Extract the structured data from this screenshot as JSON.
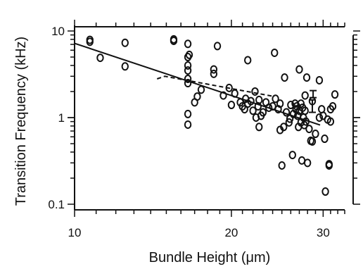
{
  "chart_data": {
    "type": "scatter",
    "title": "",
    "xlabel": "Bundle Height (μm)",
    "ylabel": "Transition Frequency (kHz)",
    "x_scale": "log",
    "y_scale": "log",
    "xlim": [
      10,
      33
    ],
    "ylim": [
      0.1,
      10
    ],
    "x_tick_labels": [
      "10",
      "20",
      "30"
    ],
    "x_tick_values": [
      10,
      20,
      30
    ],
    "y_tick_labels": [
      "0.1",
      "1",
      "10"
    ],
    "y_tick_values": [
      0.1,
      1,
      10
    ],
    "grid": false,
    "legend": "none",
    "marker": "open-circle",
    "colors": {
      "points": "#111111",
      "fit_line": "#111111",
      "dashed_line": "#111111"
    },
    "points": [
      [
        10.7,
        7.9
      ],
      [
        10.7,
        7.5
      ],
      [
        11.2,
        4.9
      ],
      [
        12.5,
        7.3
      ],
      [
        12.5,
        3.9
      ],
      [
        15.5,
        8.0
      ],
      [
        15.5,
        7.7
      ],
      [
        16.5,
        7.1
      ],
      [
        16.5,
        5.0
      ],
      [
        16.6,
        5.3
      ],
      [
        16.5,
        4.0
      ],
      [
        16.5,
        3.5
      ],
      [
        16.5,
        2.8
      ],
      [
        16.5,
        2.5
      ],
      [
        16.5,
        1.1
      ],
      [
        16.5,
        0.83
      ],
      [
        17.0,
        1.5
      ],
      [
        17.2,
        1.75
      ],
      [
        17.5,
        2.1
      ],
      [
        18.5,
        3.6
      ],
      [
        18.5,
        3.2
      ],
      [
        18.8,
        6.7
      ],
      [
        19.3,
        1.8
      ],
      [
        19.8,
        2.2
      ],
      [
        20.0,
        1.4
      ],
      [
        20.3,
        1.9
      ],
      [
        20.8,
        1.5
      ],
      [
        21.0,
        1.35
      ],
      [
        21.2,
        1.25
      ],
      [
        21.3,
        1.65
      ],
      [
        21.5,
        4.6
      ],
      [
        21.5,
        1.45
      ],
      [
        21.8,
        1.55
      ],
      [
        22.0,
        1.2
      ],
      [
        22.2,
        2.0
      ],
      [
        22.3,
        1.0
      ],
      [
        22.5,
        1.35
      ],
      [
        22.6,
        1.6
      ],
      [
        22.6,
        0.78
      ],
      [
        22.8,
        1.05
      ],
      [
        23.0,
        1.15
      ],
      [
        23.3,
        1.5
      ],
      [
        23.6,
        1.3
      ],
      [
        24.0,
        1.35
      ],
      [
        24.2,
        5.6
      ],
      [
        24.3,
        1.65
      ],
      [
        24.6,
        1.25
      ],
      [
        24.8,
        1.45
      ],
      [
        24.8,
        0.72
      ],
      [
        25.0,
        0.28
      ],
      [
        25.2,
        0.78
      ],
      [
        25.3,
        2.9
      ],
      [
        25.5,
        1.15
      ],
      [
        25.8,
        0.88
      ],
      [
        25.9,
        0.97
      ],
      [
        26.0,
        1.4
      ],
      [
        26.2,
        0.37
      ],
      [
        26.3,
        1.1
      ],
      [
        26.5,
        1.45
      ],
      [
        26.6,
        1.25
      ],
      [
        26.7,
        1.35
      ],
      [
        26.8,
        1.05
      ],
      [
        26.9,
        0.78
      ],
      [
        27.0,
        1.2
      ],
      [
        27.0,
        3.6
      ],
      [
        27.2,
        1.45
      ],
      [
        27.2,
        0.88
      ],
      [
        27.3,
        0.32
      ],
      [
        27.4,
        1.3
      ],
      [
        27.5,
        1.0
      ],
      [
        27.6,
        0.82
      ],
      [
        27.7,
        1.8
      ],
      [
        27.7,
        1.2
      ],
      [
        27.8,
        0.9
      ],
      [
        27.9,
        2.9
      ],
      [
        28.0,
        0.3
      ],
      [
        28.2,
        0.74
      ],
      [
        28.4,
        0.54
      ],
      [
        28.6,
        0.53
      ],
      [
        28.6,
        1.55
      ],
      [
        29.0,
        0.65
      ],
      [
        29.5,
        2.7
      ],
      [
        29.5,
        1.0
      ],
      [
        29.8,
        1.25
      ],
      [
        30.0,
        1.05
      ],
      [
        30.2,
        0.57
      ],
      [
        30.3,
        0.14
      ],
      [
        30.6,
        0.95
      ],
      [
        30.8,
        0.29
      ],
      [
        30.8,
        0.28
      ],
      [
        31.0,
        0.9
      ],
      [
        31.0,
        1.25
      ],
      [
        31.3,
        1.35
      ],
      [
        31.6,
        1.85
      ]
    ],
    "fit_line": [
      [
        10,
        7.2
      ],
      [
        29.6,
        0.82
      ]
    ],
    "dashed_line": [
      [
        14.4,
        2.8
      ],
      [
        14.9,
        3.0
      ],
      [
        24.2,
        1.75
      ]
    ],
    "error_bars": [
      {
        "x": 28.6,
        "y": 1.4,
        "y_low": 1.15,
        "y_high": 1.6
      },
      {
        "x": 28.7,
        "y": 1.85,
        "y_low": 1.7,
        "y_high": 2.05
      }
    ]
  }
}
